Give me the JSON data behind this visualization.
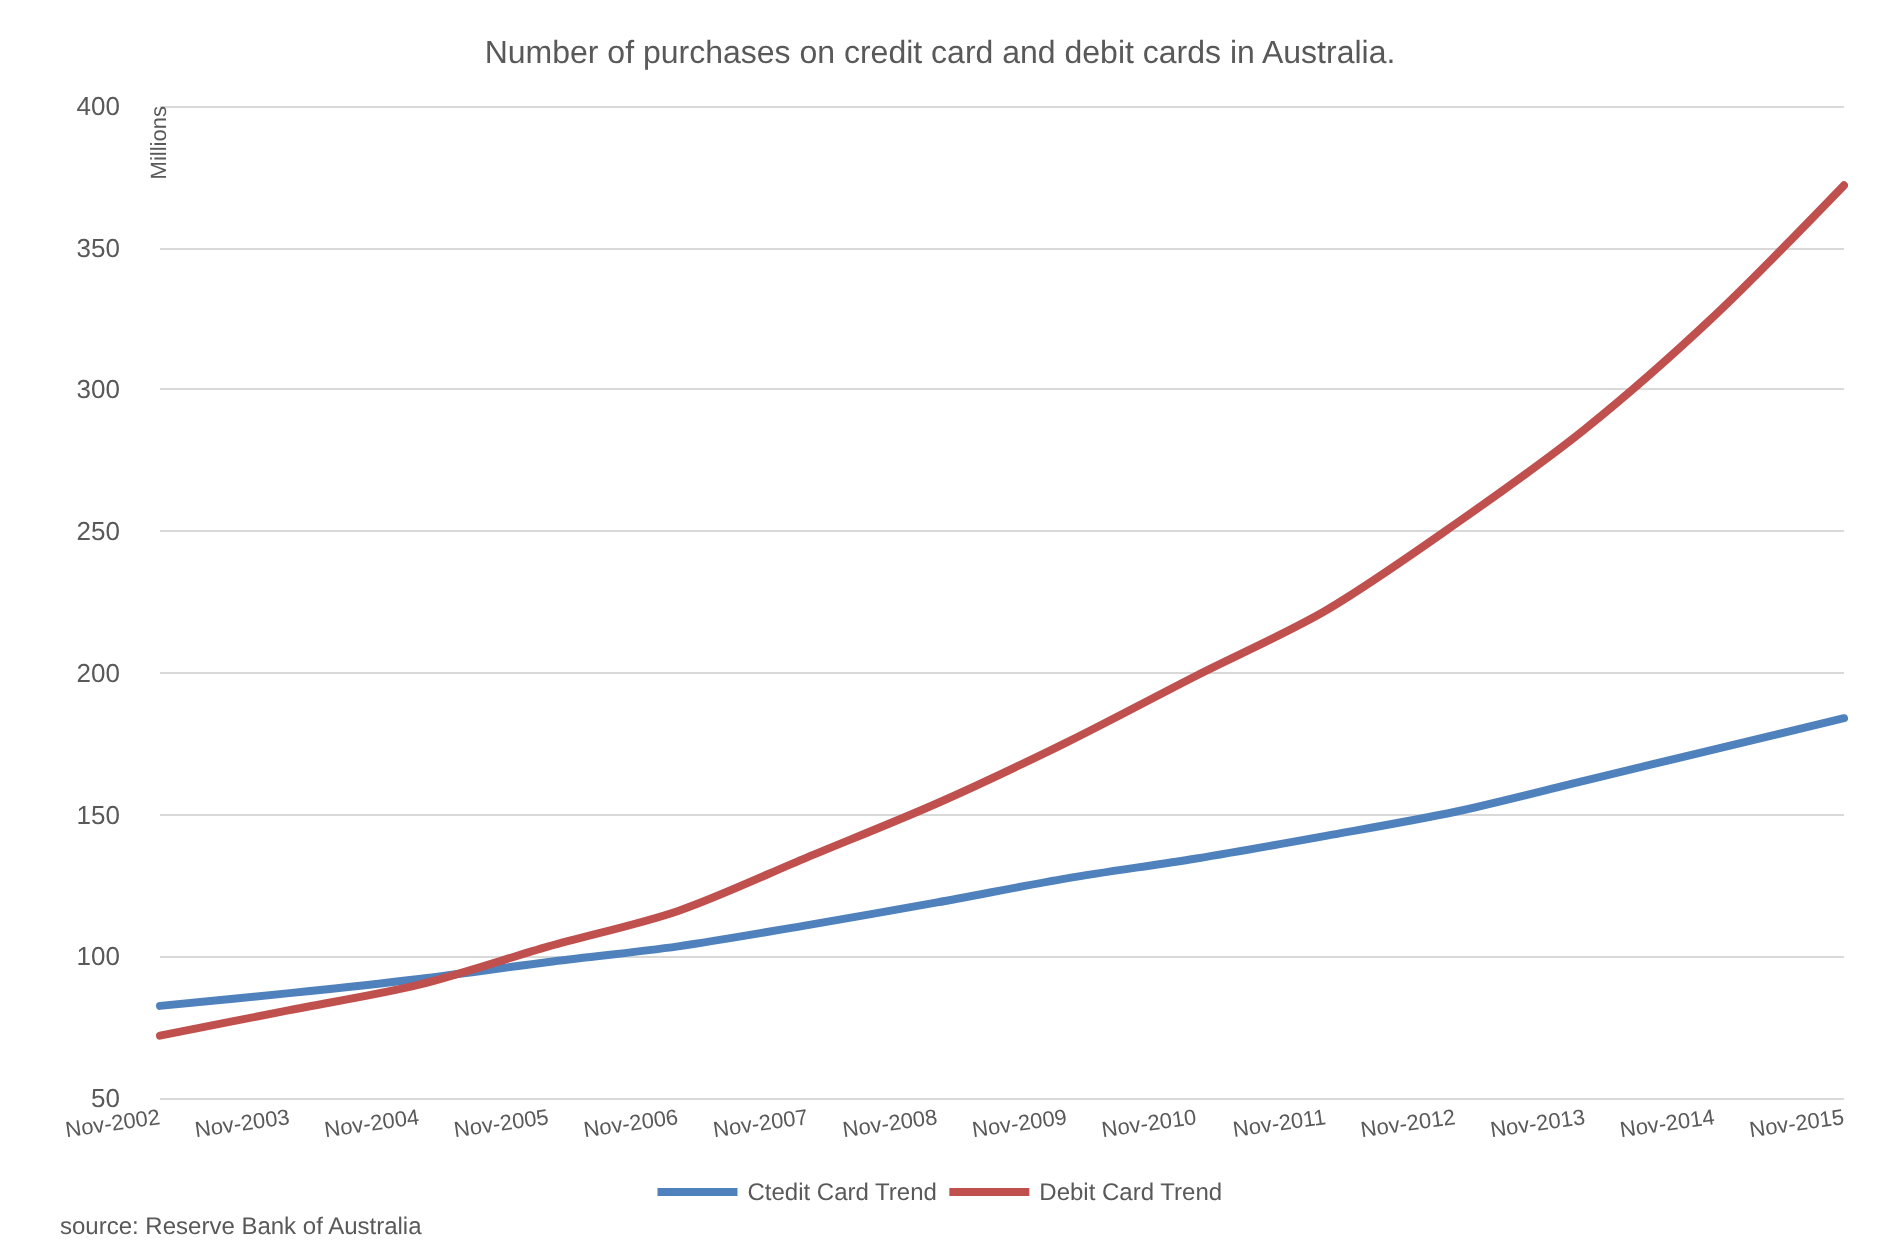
{
  "chart_data": {
    "type": "line",
    "title": "Number of purchases on credit card and debit cards in Australia.",
    "ylabel": "Millions",
    "categories": [
      "Nov-2002",
      "Nov-2003",
      "Nov-2004",
      "Nov-2005",
      "Nov-2006",
      "Nov-2007",
      "Nov-2008",
      "Nov-2009",
      "Nov-2010",
      "Nov-2011",
      "Nov-2012",
      "Nov-2013",
      "Nov-2014",
      "Nov-2015"
    ],
    "series": [
      {
        "name": "Ctedit Card Trend",
        "color": "#4f81bd",
        "values": [
          82.5,
          87,
          92,
          98,
          103.5,
          111,
          119,
          127.5,
          134.5,
          142.5,
          151,
          162,
          173,
          184
        ]
      },
      {
        "name": "Debit Card Trend",
        "color": "#c0504d",
        "values": [
          72,
          81,
          90,
          103.5,
          116,
          135,
          154,
          175.5,
          199,
          222,
          252.5,
          286,
          326,
          372
        ]
      }
    ],
    "ylim": [
      50,
      400
    ],
    "yticks": [
      50,
      100,
      150,
      200,
      250,
      300,
      350,
      400
    ],
    "grid": "y",
    "legend": "bottom",
    "marker": "none",
    "line_style": "solid",
    "annotations": [
      "source: Reserve Bank of Australia"
    ]
  }
}
